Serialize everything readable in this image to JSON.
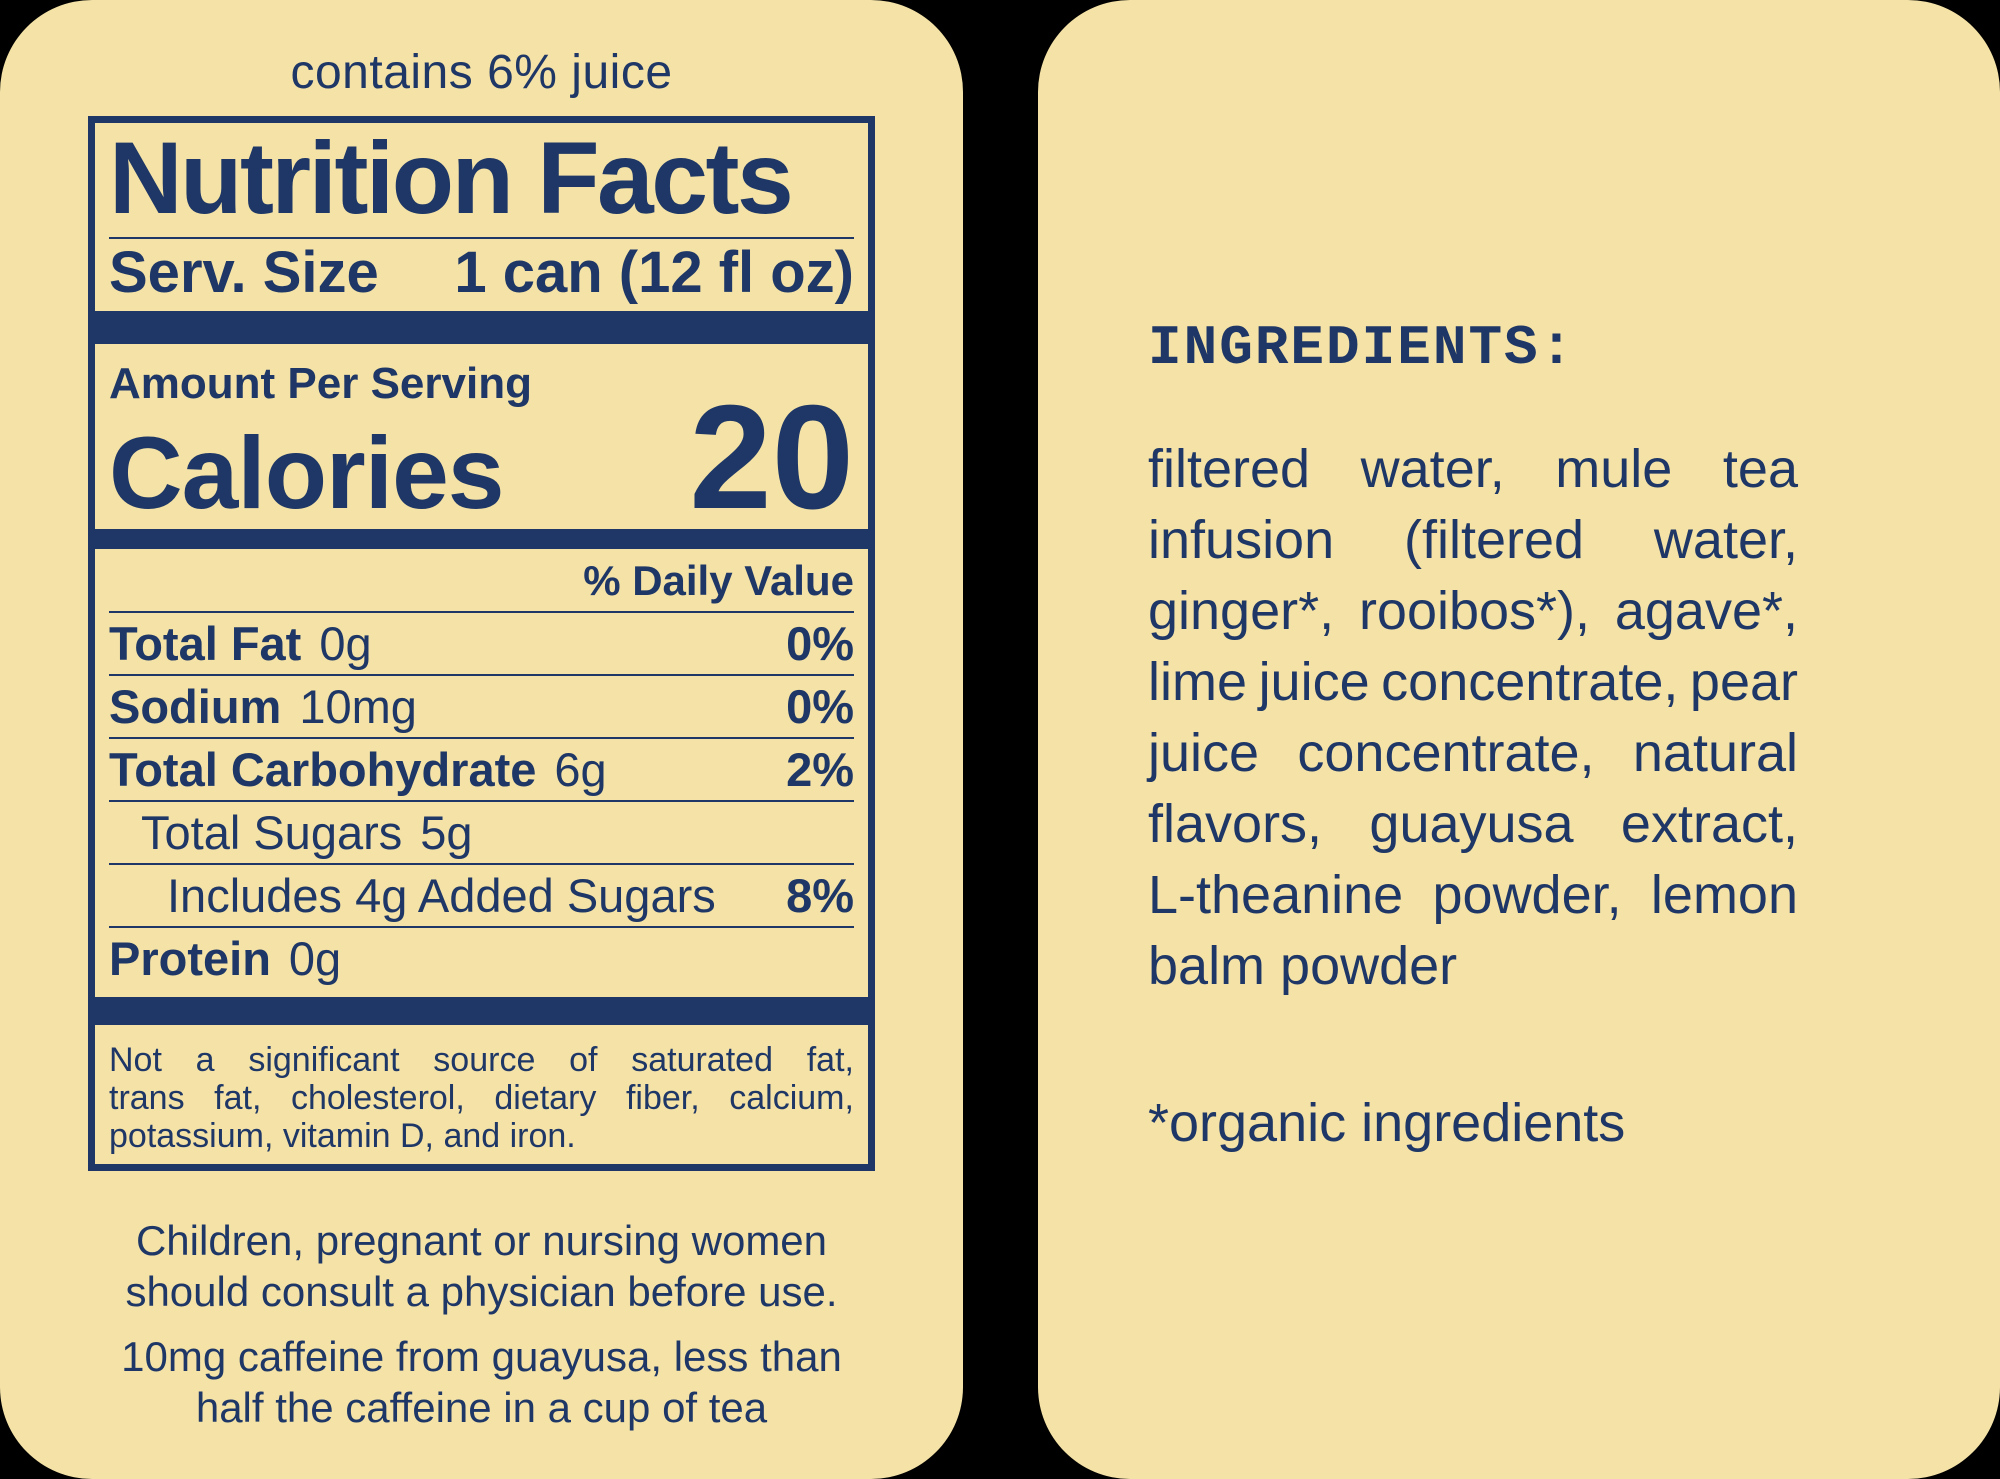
{
  "colors": {
    "background": "#000000",
    "panel": "#f4e2a6",
    "ink": "#1e3766"
  },
  "left_panel": {
    "juice_note": "contains 6% juice",
    "nutrition_facts": {
      "title": "Nutrition Facts",
      "serving_size_label": "Serv. Size",
      "serving_size_value": "1 can (12 fl oz)",
      "amount_per_serving": "Amount Per Serving",
      "calories_label": "Calories",
      "calories_value": "20",
      "daily_value_header": "% Daily Value",
      "rows": [
        {
          "label": "Total Fat",
          "amount": "0g",
          "daily_value": "0%"
        },
        {
          "label": "Sodium",
          "amount": "10mg",
          "daily_value": "0%"
        },
        {
          "label": "Total Carbohydrate",
          "amount": "6g",
          "daily_value": "2%"
        },
        {
          "label": "Total Sugars",
          "amount": "5g",
          "daily_value": ""
        },
        {
          "label": "Includes 4g Added Sugars",
          "amount": "",
          "daily_value": "8%"
        },
        {
          "label": "Protein",
          "amount": "0g",
          "daily_value": ""
        }
      ],
      "footnote_lines": [
        "Not a significant source of saturated fat,",
        "trans fat, cholesterol, dietary fiber, calcium,",
        "potassium, vitamin D, and iron."
      ]
    },
    "disclaimer_lines": [
      "Children, pregnant or nursing women",
      "should consult a physician before use."
    ],
    "caffeine_lines": [
      "10mg caffeine from guayusa, less than",
      "half the caffeine in a cup of tea"
    ]
  },
  "right_panel": {
    "heading": "INGREDIENTS:",
    "ingredients_lines": [
      "filtered water, mule tea",
      "infusion (filtered water,",
      "ginger*, rooibos*), agave*,",
      "lime juice concentrate, pear",
      "juice concentrate, natural",
      "flavors, guayusa extract,",
      "L-theanine powder, lemon",
      "balm powder"
    ],
    "organic_note": "*organic ingredients"
  }
}
